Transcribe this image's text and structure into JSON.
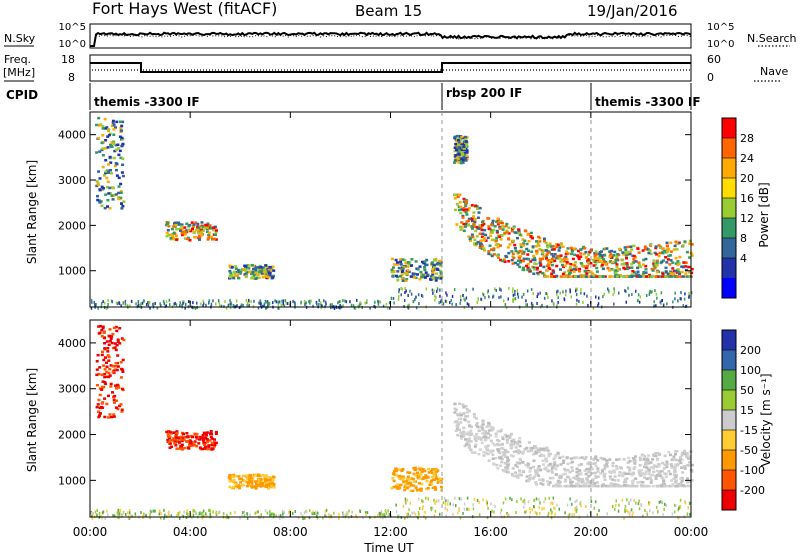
{
  "header": {
    "station": "Fort Hays West (fitACF)",
    "beam": "Beam 15",
    "date": "19/Jan/2016"
  },
  "left_labels": {
    "nsky": "N.Sky",
    "freq": "Freq.",
    "freq_unit": "[MHz]",
    "cpid": "CPID"
  },
  "right_labels": {
    "nsearch": "N.Search",
    "nave": "Nave"
  },
  "cpid_segments": [
    {
      "label": "themis -3300 IF",
      "start_h": 0,
      "end_h": 14
    },
    {
      "label": "rbsp 200 IF",
      "start_h": 14,
      "end_h": 20
    },
    {
      "label": "themis -3300 IF",
      "start_h": 20,
      "end_h": 24
    }
  ],
  "noise_panel": {
    "left_ticks": [
      "10^5",
      "10^0"
    ],
    "right_ticks": [
      "10^5",
      "10^0"
    ]
  },
  "freq_panel": {
    "left_ticks": [
      "18",
      "8"
    ],
    "right_ticks": [
      "60",
      "0"
    ]
  },
  "chart_data": [
    {
      "type": "heatmap",
      "name": "power",
      "ylabel": "Slant Range [km]",
      "ylim": [
        200,
        4500
      ],
      "yticks": [
        "1000",
        "2000",
        "3000",
        "4000"
      ],
      "colorbar_label": "Power [dB]",
      "colorbar_ticks": [
        "28",
        "24",
        "20",
        "16",
        "12",
        "8",
        "4"
      ],
      "colorbar_colors": [
        "#ff0000",
        "#ff6600",
        "#ffaa00",
        "#ffdd00",
        "#99cc33",
        "#339966",
        "#336699",
        "#2233aa",
        "#0000ff"
      ],
      "features": [
        {
          "x_h": [
            0.2,
            1.3
          ],
          "y_km": [
            2400,
            4400
          ],
          "level": "mid"
        },
        {
          "x_h": [
            3.0,
            5.0
          ],
          "y_km": [
            1700,
            2100
          ],
          "level": "high"
        },
        {
          "x_h": [
            5.5,
            7.3
          ],
          "y_km": [
            850,
            1150
          ],
          "level": "mid"
        },
        {
          "x_h": [
            12.0,
            14.0
          ],
          "y_km": [
            800,
            1300
          ],
          "level": "mid"
        },
        {
          "x_h": [
            14.5,
            24.0
          ],
          "y_km": [
            900,
            2700
          ],
          "level": "high",
          "note": "band peaking near 1100 km"
        },
        {
          "x_h": [
            14.5,
            15.0
          ],
          "y_km": [
            3400,
            4000
          ],
          "level": "mid"
        }
      ]
    },
    {
      "type": "heatmap",
      "name": "velocity",
      "ylabel": "Slant Range [km]",
      "ylim": [
        200,
        4500
      ],
      "yticks": [
        "1000",
        "2000",
        "3000",
        "4000"
      ],
      "xlabel": "Time UT",
      "xticks": [
        "00:00",
        "04:00",
        "08:00",
        "12:00",
        "16:00",
        "20:00",
        "00:00"
      ],
      "colorbar_label": "Velocity [m s⁻¹]",
      "colorbar_ticks": [
        "200",
        "100",
        "50",
        "15",
        "-15",
        "-50",
        "-100",
        "-200"
      ],
      "colorbar_colors": [
        "#2233aa",
        "#3366aa",
        "#55aa44",
        "#99cc33",
        "#cccccc",
        "#ffcc33",
        "#ff9900",
        "#ff5500",
        "#ee0000"
      ],
      "features": [
        {
          "x_h": [
            0.2,
            1.3
          ],
          "y_km": [
            2400,
            4400
          ],
          "level": "red"
        },
        {
          "x_h": [
            3.0,
            5.0
          ],
          "y_km": [
            1700,
            2100
          ],
          "level": "red"
        },
        {
          "x_h": [
            5.5,
            7.3
          ],
          "y_km": [
            850,
            1150
          ],
          "level": "orange"
        },
        {
          "x_h": [
            12.0,
            14.0
          ],
          "y_km": [
            800,
            1300
          ],
          "level": "orange"
        },
        {
          "x_h": [
            14.5,
            24.0
          ],
          "y_km": [
            900,
            2700
          ],
          "level": "grey",
          "note": "ground scatter"
        }
      ]
    }
  ]
}
